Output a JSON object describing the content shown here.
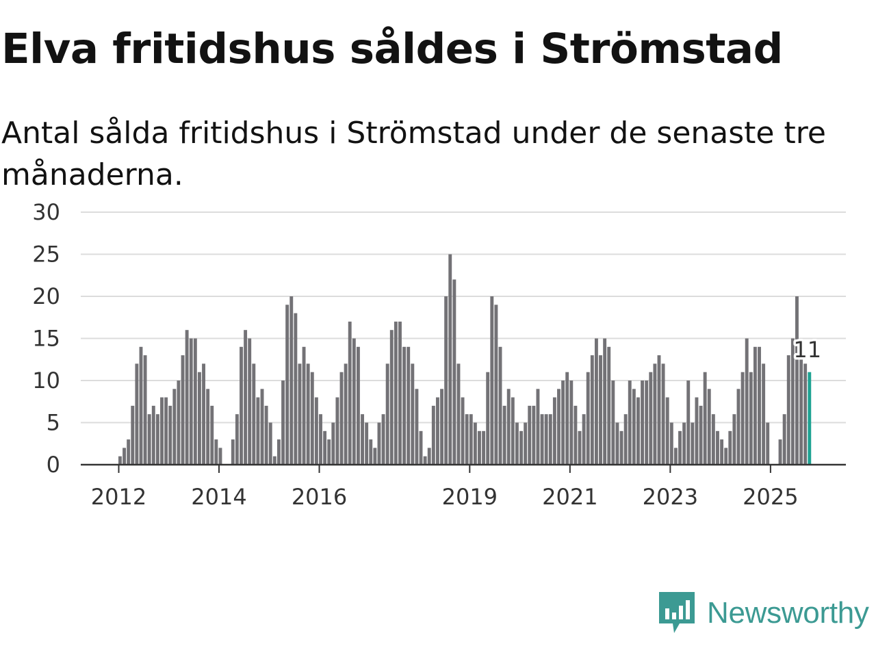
{
  "chart_data": {
    "type": "bar",
    "title": "Elva fritidshus såldes i Strömstad",
    "subtitle": "Antal sålda fritidshus i Strömstad under de senaste tre månaderna.",
    "xlabel": "",
    "ylabel": "",
    "ylim": [
      0,
      30
    ],
    "y_ticks": [
      0,
      5,
      10,
      15,
      20,
      25,
      30
    ],
    "x_ticks": [
      "2012",
      "2014",
      "2016",
      "2019",
      "2021",
      "2023",
      "2025"
    ],
    "start": "2011-05",
    "values": [
      0,
      0,
      0,
      0,
      0,
      0,
      0,
      0,
      1,
      2,
      3,
      7,
      12,
      14,
      13,
      6,
      7,
      6,
      8,
      8,
      7,
      9,
      10,
      13,
      16,
      15,
      15,
      11,
      12,
      9,
      7,
      3,
      2,
      0,
      0,
      3,
      6,
      14,
      16,
      15,
      12,
      8,
      9,
      7,
      5,
      1,
      3,
      10,
      19,
      20,
      18,
      12,
      14,
      12,
      11,
      8,
      6,
      4,
      3,
      5,
      8,
      11,
      12,
      17,
      15,
      14,
      6,
      5,
      3,
      2,
      5,
      6,
      12,
      16,
      17,
      17,
      14,
      14,
      12,
      9,
      4,
      1,
      2,
      7,
      8,
      9,
      20,
      25,
      22,
      12,
      8,
      6,
      6,
      5,
      4,
      4,
      11,
      20,
      19,
      14,
      7,
      9,
      8,
      5,
      4,
      5,
      7,
      7,
      9,
      6,
      6,
      6,
      8,
      9,
      10,
      11,
      10,
      7,
      4,
      6,
      11,
      13,
      15,
      13,
      15,
      14,
      10,
      5,
      4,
      6,
      10,
      9,
      8,
      10,
      10,
      11,
      12,
      13,
      12,
      8,
      5,
      2,
      4,
      5,
      10,
      5,
      8,
      7,
      11,
      9,
      6,
      4,
      3,
      2,
      4,
      6,
      9,
      11,
      15,
      11,
      14,
      14,
      12,
      5,
      0,
      0,
      3,
      6,
      13,
      15,
      20,
      13,
      12,
      11
    ],
    "highlight": {
      "label": "11",
      "value": 11
    },
    "colors": {
      "bar": "#737276",
      "highlight": "#1fa393",
      "grid": "#dcdcdc",
      "axis": "#333333"
    }
  },
  "brand": {
    "name": "Newsworthy",
    "color": "#3c9a93"
  }
}
